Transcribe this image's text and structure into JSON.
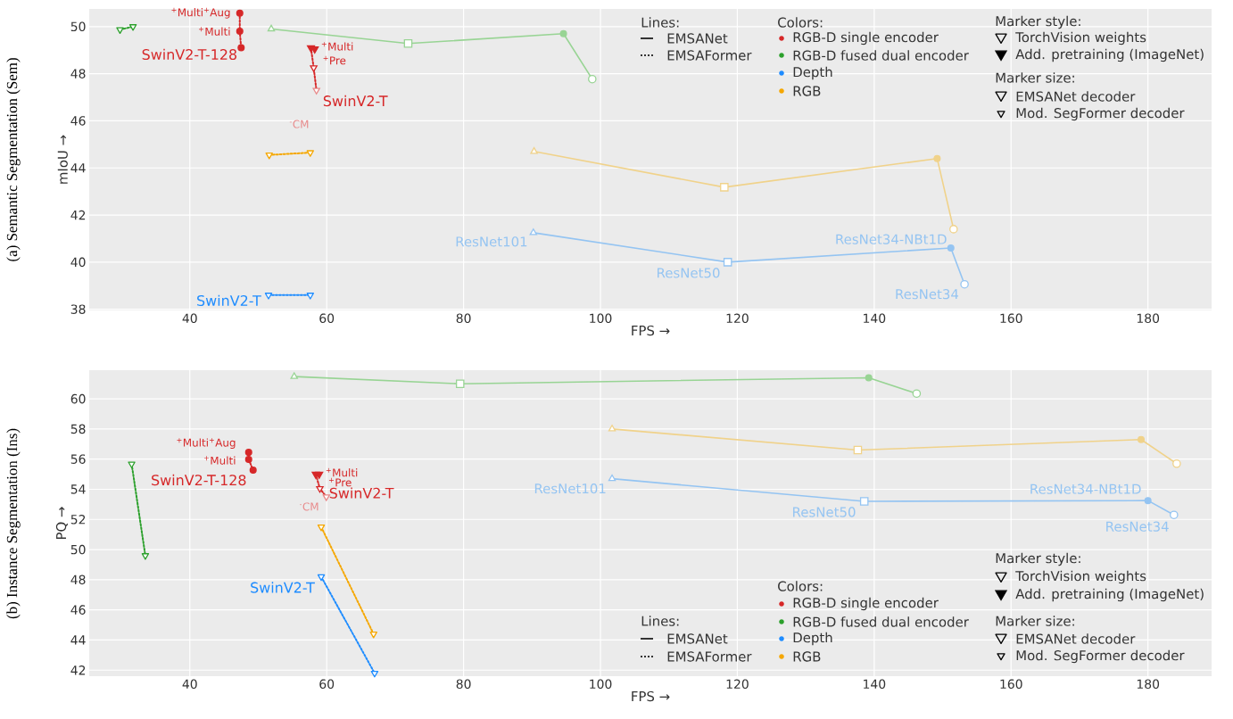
{
  "chart_data": [
    {
      "type": "line",
      "title": "(a) Semantic Segmentation (Sem)",
      "xlabel": "FPS →",
      "ylabel": "mIoU →",
      "xlim": [
        25.3,
        189.3
      ],
      "ylim": [
        37.95,
        50.75
      ],
      "xticks": [
        40,
        60,
        80,
        100,
        120,
        140,
        160,
        180
      ],
      "yticks": [
        38,
        40,
        42,
        44,
        46,
        48,
        50
      ],
      "grid": true,
      "series": [
        {
          "type": "line",
          "color": "#98d494",
          "marker": "none",
          "line_style": "solid",
          "x": [
            51.9,
            71.9,
            94.6,
            98.8
          ],
          "values": [
            49.9,
            49.28,
            49.7,
            47.77
          ]
        },
        {
          "type": "line",
          "color": "#f0d28a",
          "marker": "none",
          "line_style": "solid",
          "x": [
            90.3,
            118.1,
            149.2,
            151.6
          ],
          "values": [
            44.7,
            43.18,
            44.4,
            41.4
          ]
        },
        {
          "type": "line",
          "color": "#94c4f2",
          "marker": "none",
          "line_style": "solid",
          "x": [
            90.2,
            118.6,
            151.2,
            153.2
          ],
          "values": [
            41.25,
            40.0,
            40.6,
            39.06
          ]
        },
        {
          "type": "scatter",
          "marker": "triangle",
          "colors": [
            "#98d494",
            "#f0d28a",
            "#94c4f2"
          ],
          "x": [
            51.9,
            90.3,
            90.2
          ],
          "values": [
            49.9,
            44.7,
            41.25
          ]
        },
        {
          "type": "scatter",
          "marker": "square",
          "colors": [
            "#98d494",
            "#f0d28a",
            "#94c4f2"
          ],
          "x": [
            71.9,
            118.1,
            118.6
          ],
          "values": [
            49.28,
            43.18,
            40.0
          ]
        },
        {
          "type": "scatter",
          "marker": "circle",
          "colors": [
            "#98d494",
            "#f0d28a",
            "#94c4f2"
          ],
          "x": [
            94.6,
            149.2,
            151.2
          ],
          "values": [
            49.7,
            44.4,
            40.6
          ]
        },
        {
          "type": "scatter",
          "marker": "circle",
          "colors": [
            "#98d494",
            "#f0d28a",
            "#94c4f2"
          ],
          "x": [
            98.8,
            151.6,
            153.2
          ],
          "values": [
            47.77,
            41.4,
            39.06
          ]
        },
        {
          "type": "line",
          "color": "#d62728",
          "marker": "circle",
          "line_style": "dotted",
          "x": [
            47.3,
            47.3,
            47.5
          ],
          "values": [
            50.57,
            49.8,
            49.1
          ]
        },
        {
          "type": "line",
          "color": "#d62728",
          "marker": "none",
          "line_style": "dotted",
          "x": [
            57.7,
            58.1,
            58.5
          ],
          "values": [
            49.1,
            48.25,
            47.3
          ]
        },
        {
          "type": "scatter",
          "marker": "triangle",
          "color": "#d62728",
          "x": [
            57.7,
            58.25
          ],
          "values": [
            49.1,
            49.05
          ]
        },
        {
          "type": "scatter",
          "marker": "triangle",
          "colors": [
            "#d62728",
            "#e8898a"
          ],
          "x": [
            58.1,
            58.5
          ],
          "values": [
            48.25,
            47.3
          ]
        },
        {
          "type": "line",
          "color": "#2ca02c",
          "marker": "triangle",
          "line_style": "dotted",
          "x": [
            29.8,
            31.7
          ],
          "values": [
            49.87,
            50.0
          ]
        },
        {
          "type": "line",
          "color": "#f5a700",
          "marker": "triangle",
          "line_style": "dotted",
          "x": [
            51.6,
            57.6
          ],
          "values": [
            44.55,
            44.65
          ]
        },
        {
          "type": "line",
          "color": "#1e8cff",
          "marker": "triangle",
          "line_style": "dotted",
          "x": [
            51.5,
            57.6
          ],
          "values": [
            38.6,
            38.6
          ]
        }
      ],
      "annotations": [
        {
          "text": "$^{+}$Multi$^{+}$Aug",
          "x": 47.3,
          "y": 50.57
        },
        {
          "text": "$^{+}$Multi",
          "x": 47.3,
          "y": 49.8
        },
        {
          "text": "SwinV2-T-128",
          "x": 47.5,
          "y": 49.1
        },
        {
          "text": "$^{+}$Multi",
          "x": 58.25,
          "y": 49.05
        },
        {
          "text": "$^{+}$Pre",
          "x": 57.7,
          "y": 49.1
        },
        {
          "text": "SwinV2-T",
          "x": 58.1,
          "y": 48.25
        },
        {
          "text": "$^{-}$CM",
          "x": 58.5,
          "y": 47.3
        },
        {
          "text": "SwinV2-T",
          "x": 51.5,
          "y": 38.6
        },
        {
          "text": "ResNet101",
          "x": 90.2,
          "y": 41.25
        },
        {
          "text": "ResNet50",
          "x": 118.6,
          "y": 40.0
        },
        {
          "text": "ResNet34-NBt1D",
          "x": 151.2,
          "y": 40.6
        },
        {
          "text": "ResNet34",
          "x": 153.2,
          "y": 39.06
        },
        "Lines:",
        "EMSANet",
        "EMSAFormer",
        "Colors:",
        "RGB-D single encoder",
        "RGB-D fused dual encoder",
        "Depth",
        "RGB",
        "Marker style:",
        "TorchVision weights",
        "Add. pretraining (ImageNet)",
        "Marker size:",
        "EMSANet decoder",
        "Mod. SegFormer decoder"
      ]
    },
    {
      "type": "line",
      "title": "(b) Instance Segmentation (Ins)",
      "xlabel": "FPS →",
      "ylabel": "PQ →",
      "xlim": [
        25.3,
        189.3
      ],
      "ylim": [
        41.6,
        61.9
      ],
      "xticks": [
        40,
        60,
        80,
        100,
        120,
        140,
        160,
        180
      ],
      "yticks": [
        42,
        44,
        46,
        48,
        50,
        52,
        54,
        56,
        58,
        60
      ],
      "grid": true,
      "series": [
        {
          "type": "line",
          "color": "#98d494",
          "marker": "none",
          "line_style": "solid",
          "x": [
            55.25,
            79.5,
            139.2,
            146.2
          ],
          "values": [
            61.48,
            61.0,
            61.4,
            60.35
          ]
        },
        {
          "type": "line",
          "color": "#f0d28a",
          "marker": "none",
          "line_style": "solid",
          "x": [
            101.7,
            137.6,
            179.0,
            184.2
          ],
          "values": [
            58.0,
            56.6,
            57.3,
            55.7
          ]
        },
        {
          "type": "line",
          "color": "#94c4f2",
          "marker": "none",
          "line_style": "solid",
          "x": [
            101.7,
            138.55,
            180.0,
            183.8
          ],
          "values": [
            54.7,
            53.2,
            53.25,
            52.3
          ]
        },
        {
          "type": "scatter",
          "marker": "triangle",
          "colors": [
            "#98d494",
            "#f0d28a",
            "#94c4f2"
          ],
          "x": [
            55.25,
            101.7,
            101.7
          ],
          "values": [
            61.48,
            58.0,
            54.7
          ]
        },
        {
          "type": "scatter",
          "marker": "square",
          "colors": [
            "#98d494",
            "#f0d28a",
            "#94c4f2"
          ],
          "x": [
            79.5,
            137.6,
            138.55
          ],
          "values": [
            61.0,
            56.6,
            53.2
          ]
        },
        {
          "type": "scatter",
          "marker": "circle",
          "colors": [
            "#98d494",
            "#f0d28a",
            "#94c4f2"
          ],
          "x": [
            139.2,
            179.0,
            180.0
          ],
          "values": [
            61.4,
            57.3,
            53.25
          ]
        },
        {
          "type": "scatter",
          "marker": "circle",
          "colors": [
            "#98d494",
            "#f0d28a",
            "#94c4f2"
          ],
          "x": [
            146.2,
            184.2,
            183.8
          ],
          "values": [
            60.35,
            55.7,
            52.3
          ]
        },
        {
          "type": "line",
          "color": "#d62728",
          "marker": "circle",
          "line_style": "dotted",
          "x": [
            48.6,
            48.6,
            49.25
          ],
          "values": [
            56.45,
            55.98,
            55.27
          ]
        },
        {
          "type": "line",
          "color": "#d62728",
          "marker": "none",
          "line_style": "dotted",
          "x": [
            58.4,
            59.0,
            59.95
          ],
          "values": [
            55.0,
            54.05,
            53.5
          ]
        },
        {
          "type": "scatter",
          "marker": "triangle",
          "color": "#d62728",
          "x": [
            58.4,
            58.9
          ],
          "values": [
            55.0,
            55.0
          ]
        },
        {
          "type": "scatter",
          "marker": "triangle",
          "colors": [
            "#d62728",
            "#e8898a"
          ],
          "x": [
            59.0,
            59.95
          ],
          "values": [
            54.05,
            53.5
          ]
        },
        {
          "type": "line",
          "color": "#2ca02c",
          "marker": "triangle",
          "line_style": "dotted",
          "x": [
            31.5,
            33.5
          ],
          "values": [
            55.68,
            49.6
          ]
        },
        {
          "type": "line",
          "color": "#f5a700",
          "marker": "triangle",
          "line_style": "dotted",
          "x": [
            59.2,
            66.85
          ],
          "values": [
            51.5,
            44.4
          ]
        },
        {
          "type": "line",
          "color": "#1e8cff",
          "marker": "triangle",
          "line_style": "dotted",
          "x": [
            59.2,
            67.0
          ],
          "values": [
            48.2,
            41.8
          ]
        }
      ],
      "annotations": [
        {
          "text": "$^{+}$Multi$^{+}$Aug",
          "x": 48.6,
          "y": 56.45
        },
        {
          "text": "$^{+}$Multi",
          "x": 48.6,
          "y": 55.98
        },
        {
          "text": "SwinV2-T-128",
          "x": 49.25,
          "y": 55.27
        },
        {
          "text": "$^{+}$Multi",
          "x": 58.9,
          "y": 55.0
        },
        {
          "text": "$^{+}$Pre",
          "x": 58.4,
          "y": 55.0
        },
        {
          "text": "SwinV2-T",
          "x": 59.0,
          "y": 54.05
        },
        {
          "text": "$^{-}$CM",
          "x": 59.95,
          "y": 53.5
        },
        {
          "text": "SwinV2-T",
          "x": 59.2,
          "y": 48.2
        },
        {
          "text": "ResNet101",
          "x": 101.7,
          "y": 54.7
        },
        {
          "text": "ResNet50",
          "x": 138.55,
          "y": 53.2
        },
        {
          "text": "ResNet34-NBt1D",
          "x": 180.0,
          "y": 53.25
        },
        {
          "text": "ResNet34",
          "x": 183.8,
          "y": 52.3
        },
        "Lines:",
        "EMSANet",
        "EMSAFormer",
        "Colors:",
        "RGB-D single encoder",
        "RGB-D fused dual encoder",
        "Depth",
        "RGB",
        "Marker style:",
        "TorchVision weights",
        "Add. pretraining (ImageNet)",
        "Marker size:",
        "EMSANet decoder",
        "Mod. SegFormer decoder"
      ]
    }
  ]
}
